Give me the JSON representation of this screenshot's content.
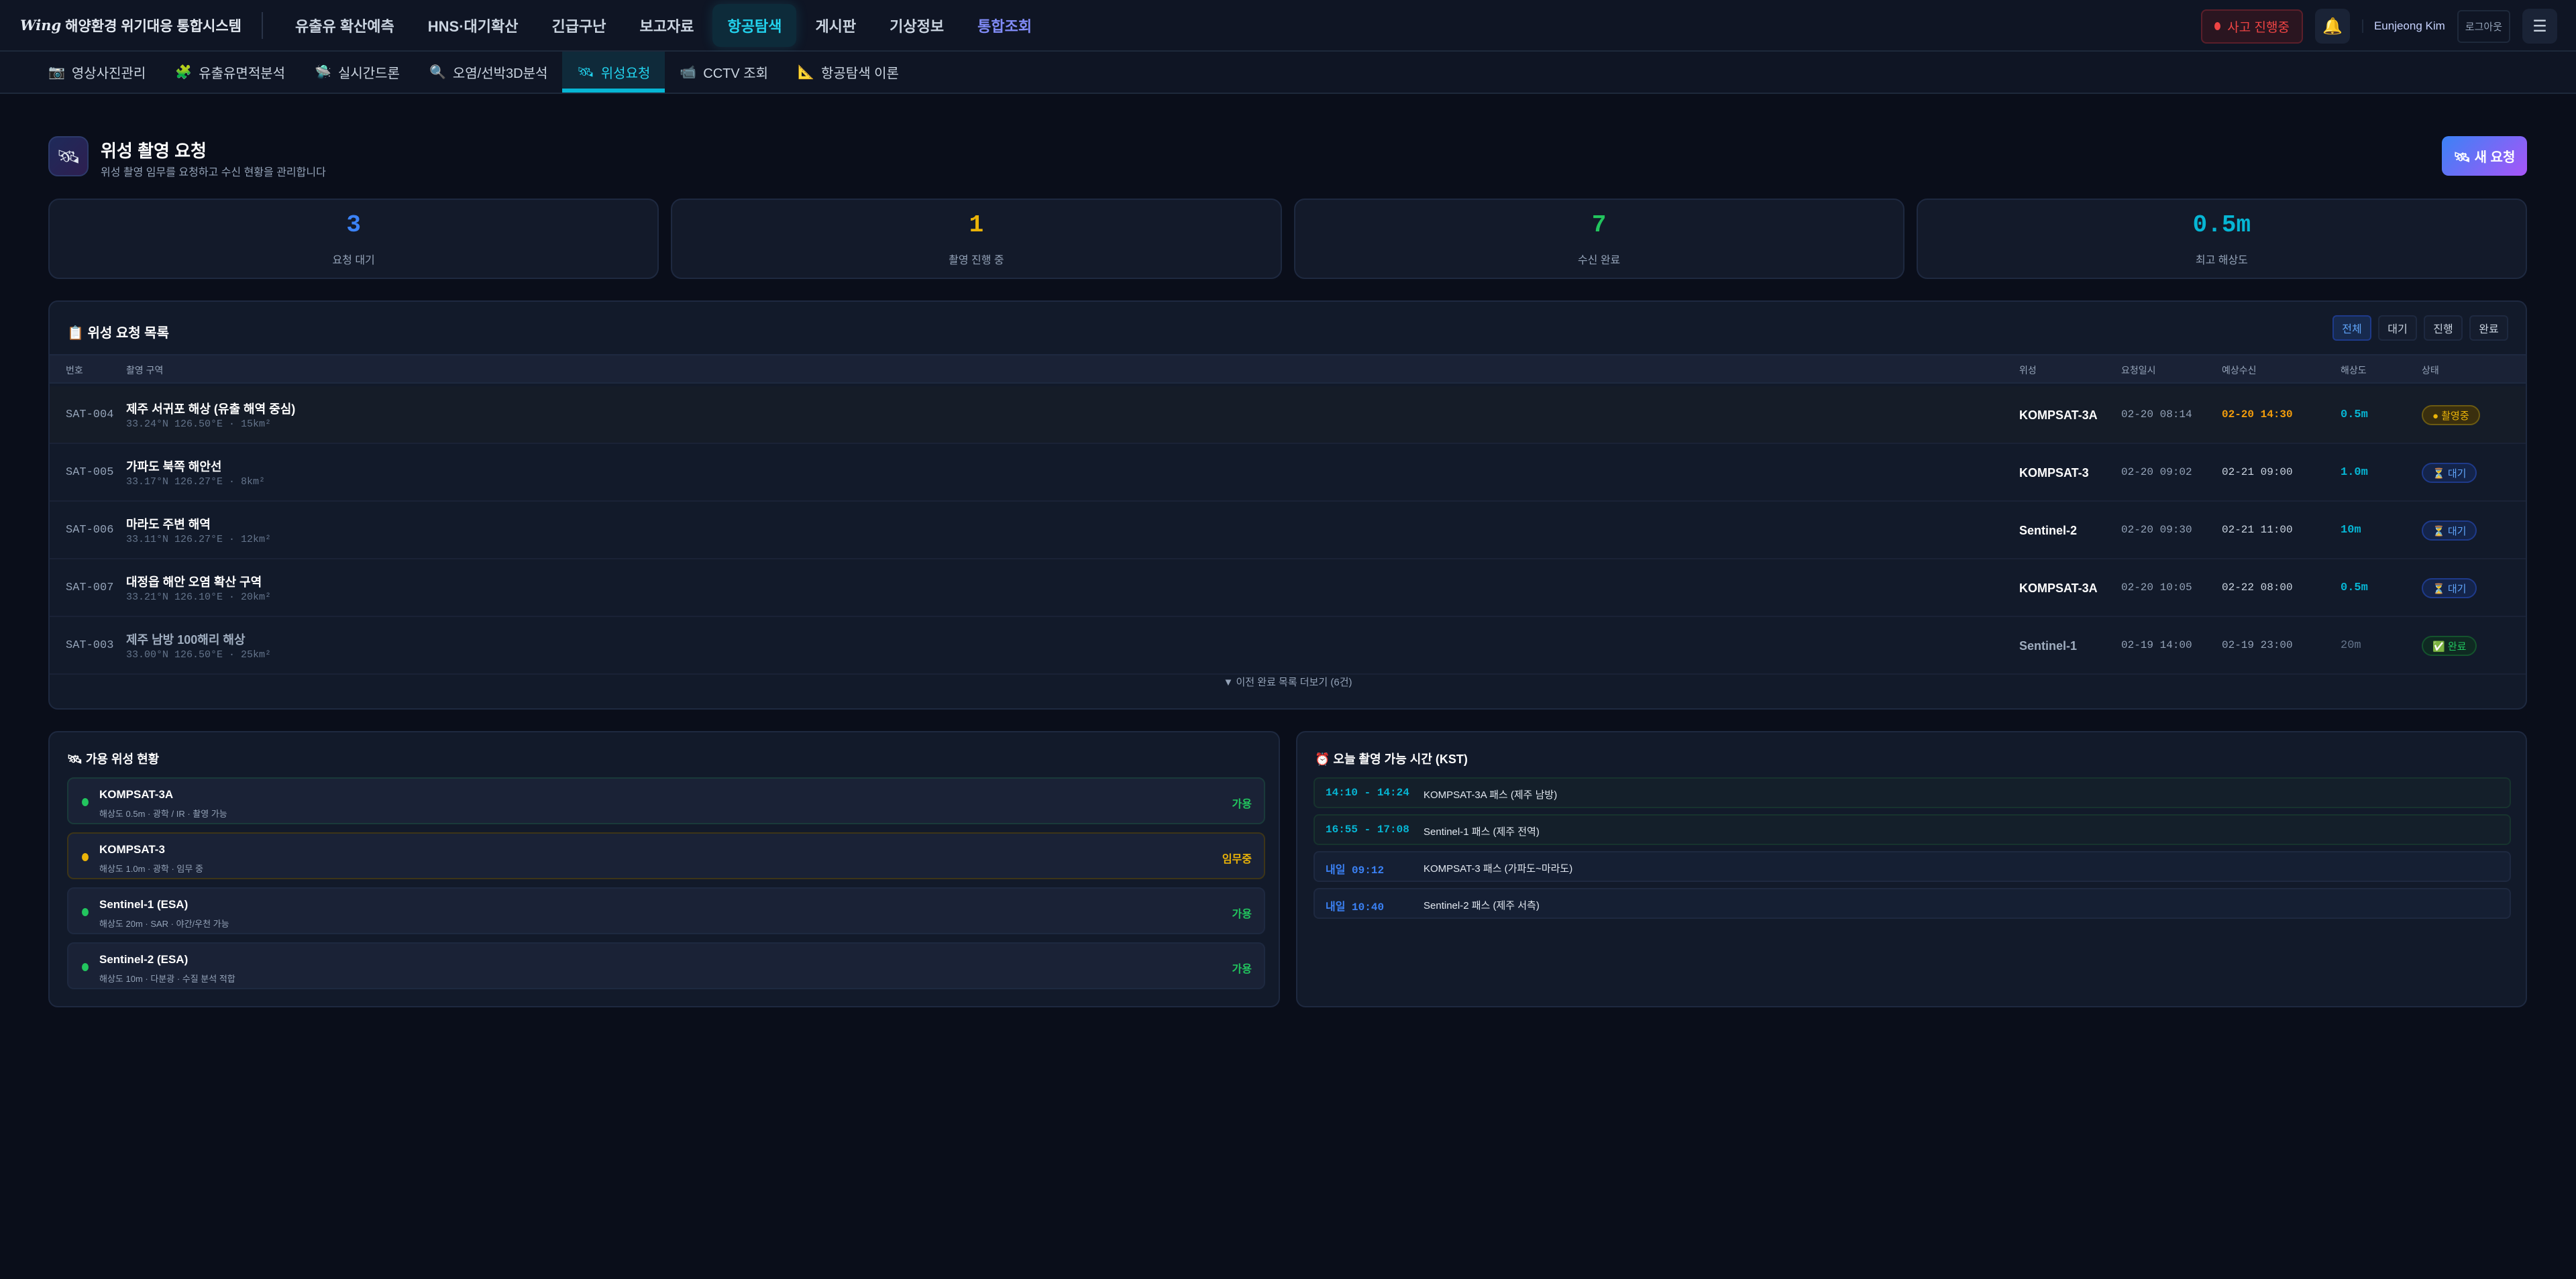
{
  "app": {
    "logo": "Wing",
    "title": "해양환경 위기대응 통합시스템"
  },
  "nav": [
    {
      "label": "유출유 확산예측"
    },
    {
      "label": "HNS·대기확산"
    },
    {
      "label": "긴급구난"
    },
    {
      "label": "보고자료"
    },
    {
      "label": "항공탐색",
      "active": true
    },
    {
      "label": "게시판"
    },
    {
      "label": "기상정보"
    },
    {
      "label": "통합조회",
      "accent": true
    }
  ],
  "header_right": {
    "incident": "사고 진행중",
    "bell_icon": "🔔",
    "user": "Eunjeong Kim",
    "logout": "로그아웃",
    "menu_icon": "☰"
  },
  "subnav": [
    {
      "icon": "📷",
      "label": "영상사진관리"
    },
    {
      "icon": "🧩",
      "label": "유출유면적분석"
    },
    {
      "icon": "🛸",
      "label": "실시간드론"
    },
    {
      "icon": "🔍",
      "label": "오염/선박3D분석"
    },
    {
      "icon": "🛰",
      "label": "위성요청",
      "active": true
    },
    {
      "icon": "📹",
      "label": "CCTV 조회"
    },
    {
      "icon": "📐",
      "label": "항공탐색 이론"
    }
  ],
  "page": {
    "icon": "🛰",
    "title": "위성 촬영 요청",
    "subtitle": "위성 촬영 임무를 요청하고 수신 현황을 관리합니다",
    "new_button": "🛰 새 요청"
  },
  "stats": [
    {
      "value": "3",
      "label": "요청 대기",
      "color": "#3b82f6"
    },
    {
      "value": "1",
      "label": "촬영 진행 중",
      "color": "#eab308"
    },
    {
      "value": "7",
      "label": "수신 완료",
      "color": "#22c55e"
    },
    {
      "value": "0.5m",
      "label": "최고 해상도",
      "color": "#06b6d4"
    }
  ],
  "list": {
    "title": "📋 위성 요청 목록",
    "filters": [
      "전체",
      "대기",
      "진행",
      "완료"
    ],
    "active_filter": "전체",
    "columns": [
      "번호",
      "촬영 구역",
      "위성",
      "요청일시",
      "예상수신",
      "해상도",
      "상태"
    ],
    "rows": [
      {
        "id": "SAT-004",
        "area": "제주 서귀포 해상 (유출 해역 중심)",
        "coord": "33.24°N 126.50°E · 15km²",
        "sat": "KOMPSAT-3A",
        "req": "02-20 08:14",
        "eta": "02-20 14:30",
        "res": "0.5m",
        "status": "● 촬영중",
        "status_type": "active"
      },
      {
        "id": "SAT-005",
        "area": "가파도 북쪽 해안선",
        "coord": "33.17°N 126.27°E · 8km²",
        "sat": "KOMPSAT-3",
        "req": "02-20 09:02",
        "eta": "02-21 09:00",
        "res": "1.0m",
        "status": "⏳ 대기",
        "status_type": "wait"
      },
      {
        "id": "SAT-006",
        "area": "마라도 주변 해역",
        "coord": "33.11°N 126.27°E · 12km²",
        "sat": "Sentinel-2",
        "req": "02-20 09:30",
        "eta": "02-21 11:00",
        "res": "10m",
        "status": "⏳ 대기",
        "status_type": "wait"
      },
      {
        "id": "SAT-007",
        "area": "대정읍 해안 오염 확산 구역",
        "coord": "33.21°N 126.10°E · 20km²",
        "sat": "KOMPSAT-3A",
        "req": "02-20 10:05",
        "eta": "02-22 08:00",
        "res": "0.5m",
        "status": "⏳ 대기",
        "status_type": "wait"
      },
      {
        "id": "SAT-003",
        "area": "제주 남방 100해리 해상",
        "coord": "33.00°N 126.50°E · 25km²",
        "sat": "Sentinel-1",
        "req": "02-19 14:00",
        "eta": "02-19 23:00",
        "res": "20m",
        "status": "✅ 완료",
        "status_type": "done"
      }
    ],
    "more": "▼ 이전 완료 목록 더보기 (6건)"
  },
  "satellites": {
    "title": "🛰 가용 위성 현황",
    "items": [
      {
        "name": "KOMPSAT-3A",
        "desc": "해상도 0.5m · 광학 / IR · 촬영 가능",
        "status": "가용",
        "color": "#22c55e"
      },
      {
        "name": "KOMPSAT-3",
        "desc": "해상도 1.0m · 광학 · 임무 중",
        "status": "임무중",
        "color": "#eab308"
      },
      {
        "name": "Sentinel-1 (ESA)",
        "desc": "해상도 20m · SAR · 야간/우천 가능",
        "status": "가용",
        "color": "#22c55e"
      },
      {
        "name": "Sentinel-2 (ESA)",
        "desc": "해상도 10m · 다분광 · 수질 분석 적합",
        "status": "가용",
        "color": "#22c55e"
      }
    ]
  },
  "passes": {
    "title": "⏰ 오늘 촬영 가능 시간 (KST)",
    "items": [
      {
        "time": "14:10 - 14:24",
        "desc": "KOMPSAT-3A 패스 (제주 남방)",
        "today": true
      },
      {
        "time": "16:55 - 17:08",
        "desc": "Sentinel-1 패스 (제주 전역)",
        "today": true
      },
      {
        "time": "내일 09:12",
        "desc": "KOMPSAT-3 패스 (가파도~마라도)",
        "today": false
      },
      {
        "time": "내일 10:40",
        "desc": "Sentinel-2 패스 (제주 서측)",
        "today": false
      }
    ]
  }
}
